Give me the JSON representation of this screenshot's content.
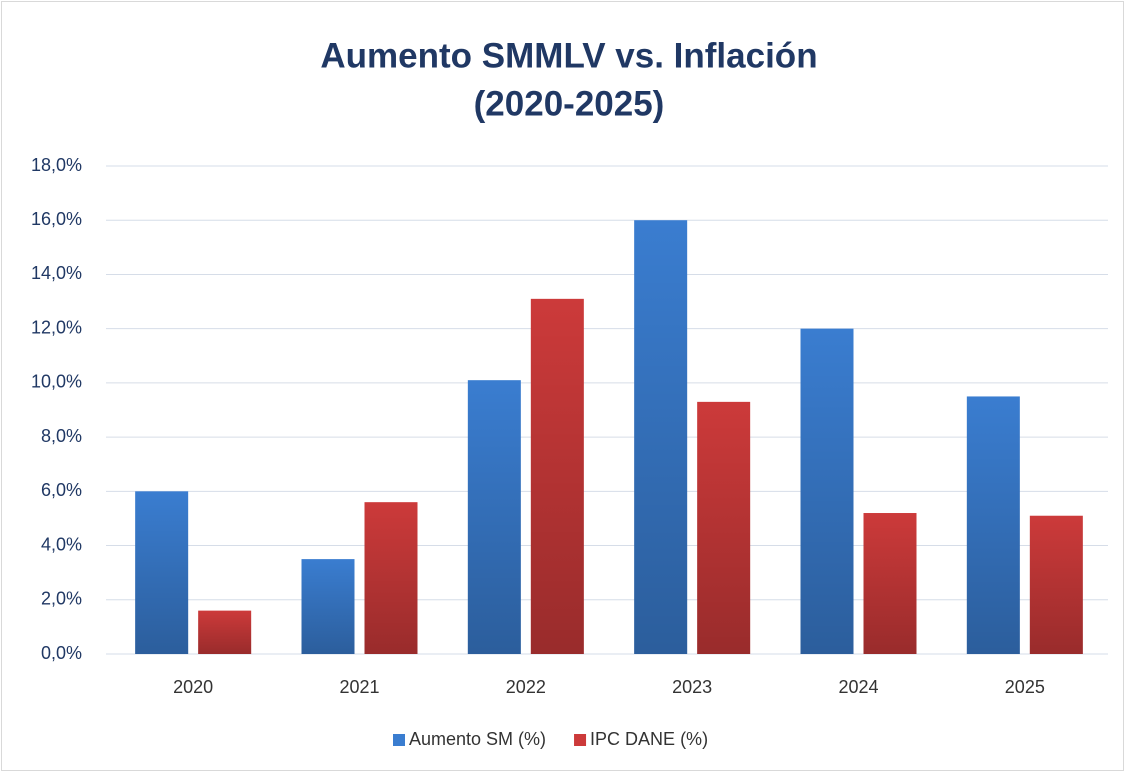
{
  "chart_data": {
    "type": "bar",
    "title": "Aumento SMMLV vs. Inflación",
    "subtitle": "(2020-2025)",
    "categories": [
      "2020",
      "2021",
      "2022",
      "2023",
      "2024",
      "2025"
    ],
    "series": [
      {
        "name": "Aumento SM (%)",
        "color": "#3a7dd0",
        "values": [
          6.0,
          3.5,
          10.1,
          16.0,
          12.0,
          9.5
        ]
      },
      {
        "name": "IPC DANE (%)",
        "color": "#cc3a3a",
        "values": [
          1.6,
          5.6,
          13.1,
          9.3,
          5.2,
          5.1
        ]
      }
    ],
    "ylim": [
      0,
      18
    ],
    "yticks": [
      {
        "value": 0,
        "label": "0,0%"
      },
      {
        "value": 2,
        "label": "2,0%"
      },
      {
        "value": 4,
        "label": "4,0%"
      },
      {
        "value": 6,
        "label": "6,0%"
      },
      {
        "value": 8,
        "label": "8,0%"
      },
      {
        "value": 10,
        "label": "10,0%"
      },
      {
        "value": 12,
        "label": "12,0%"
      },
      {
        "value": 14,
        "label": "14,0%"
      },
      {
        "value": 16,
        "label": "16,0%"
      },
      {
        "value": 18,
        "label": "18,0%"
      }
    ],
    "grid": true,
    "legend": "bottom"
  }
}
